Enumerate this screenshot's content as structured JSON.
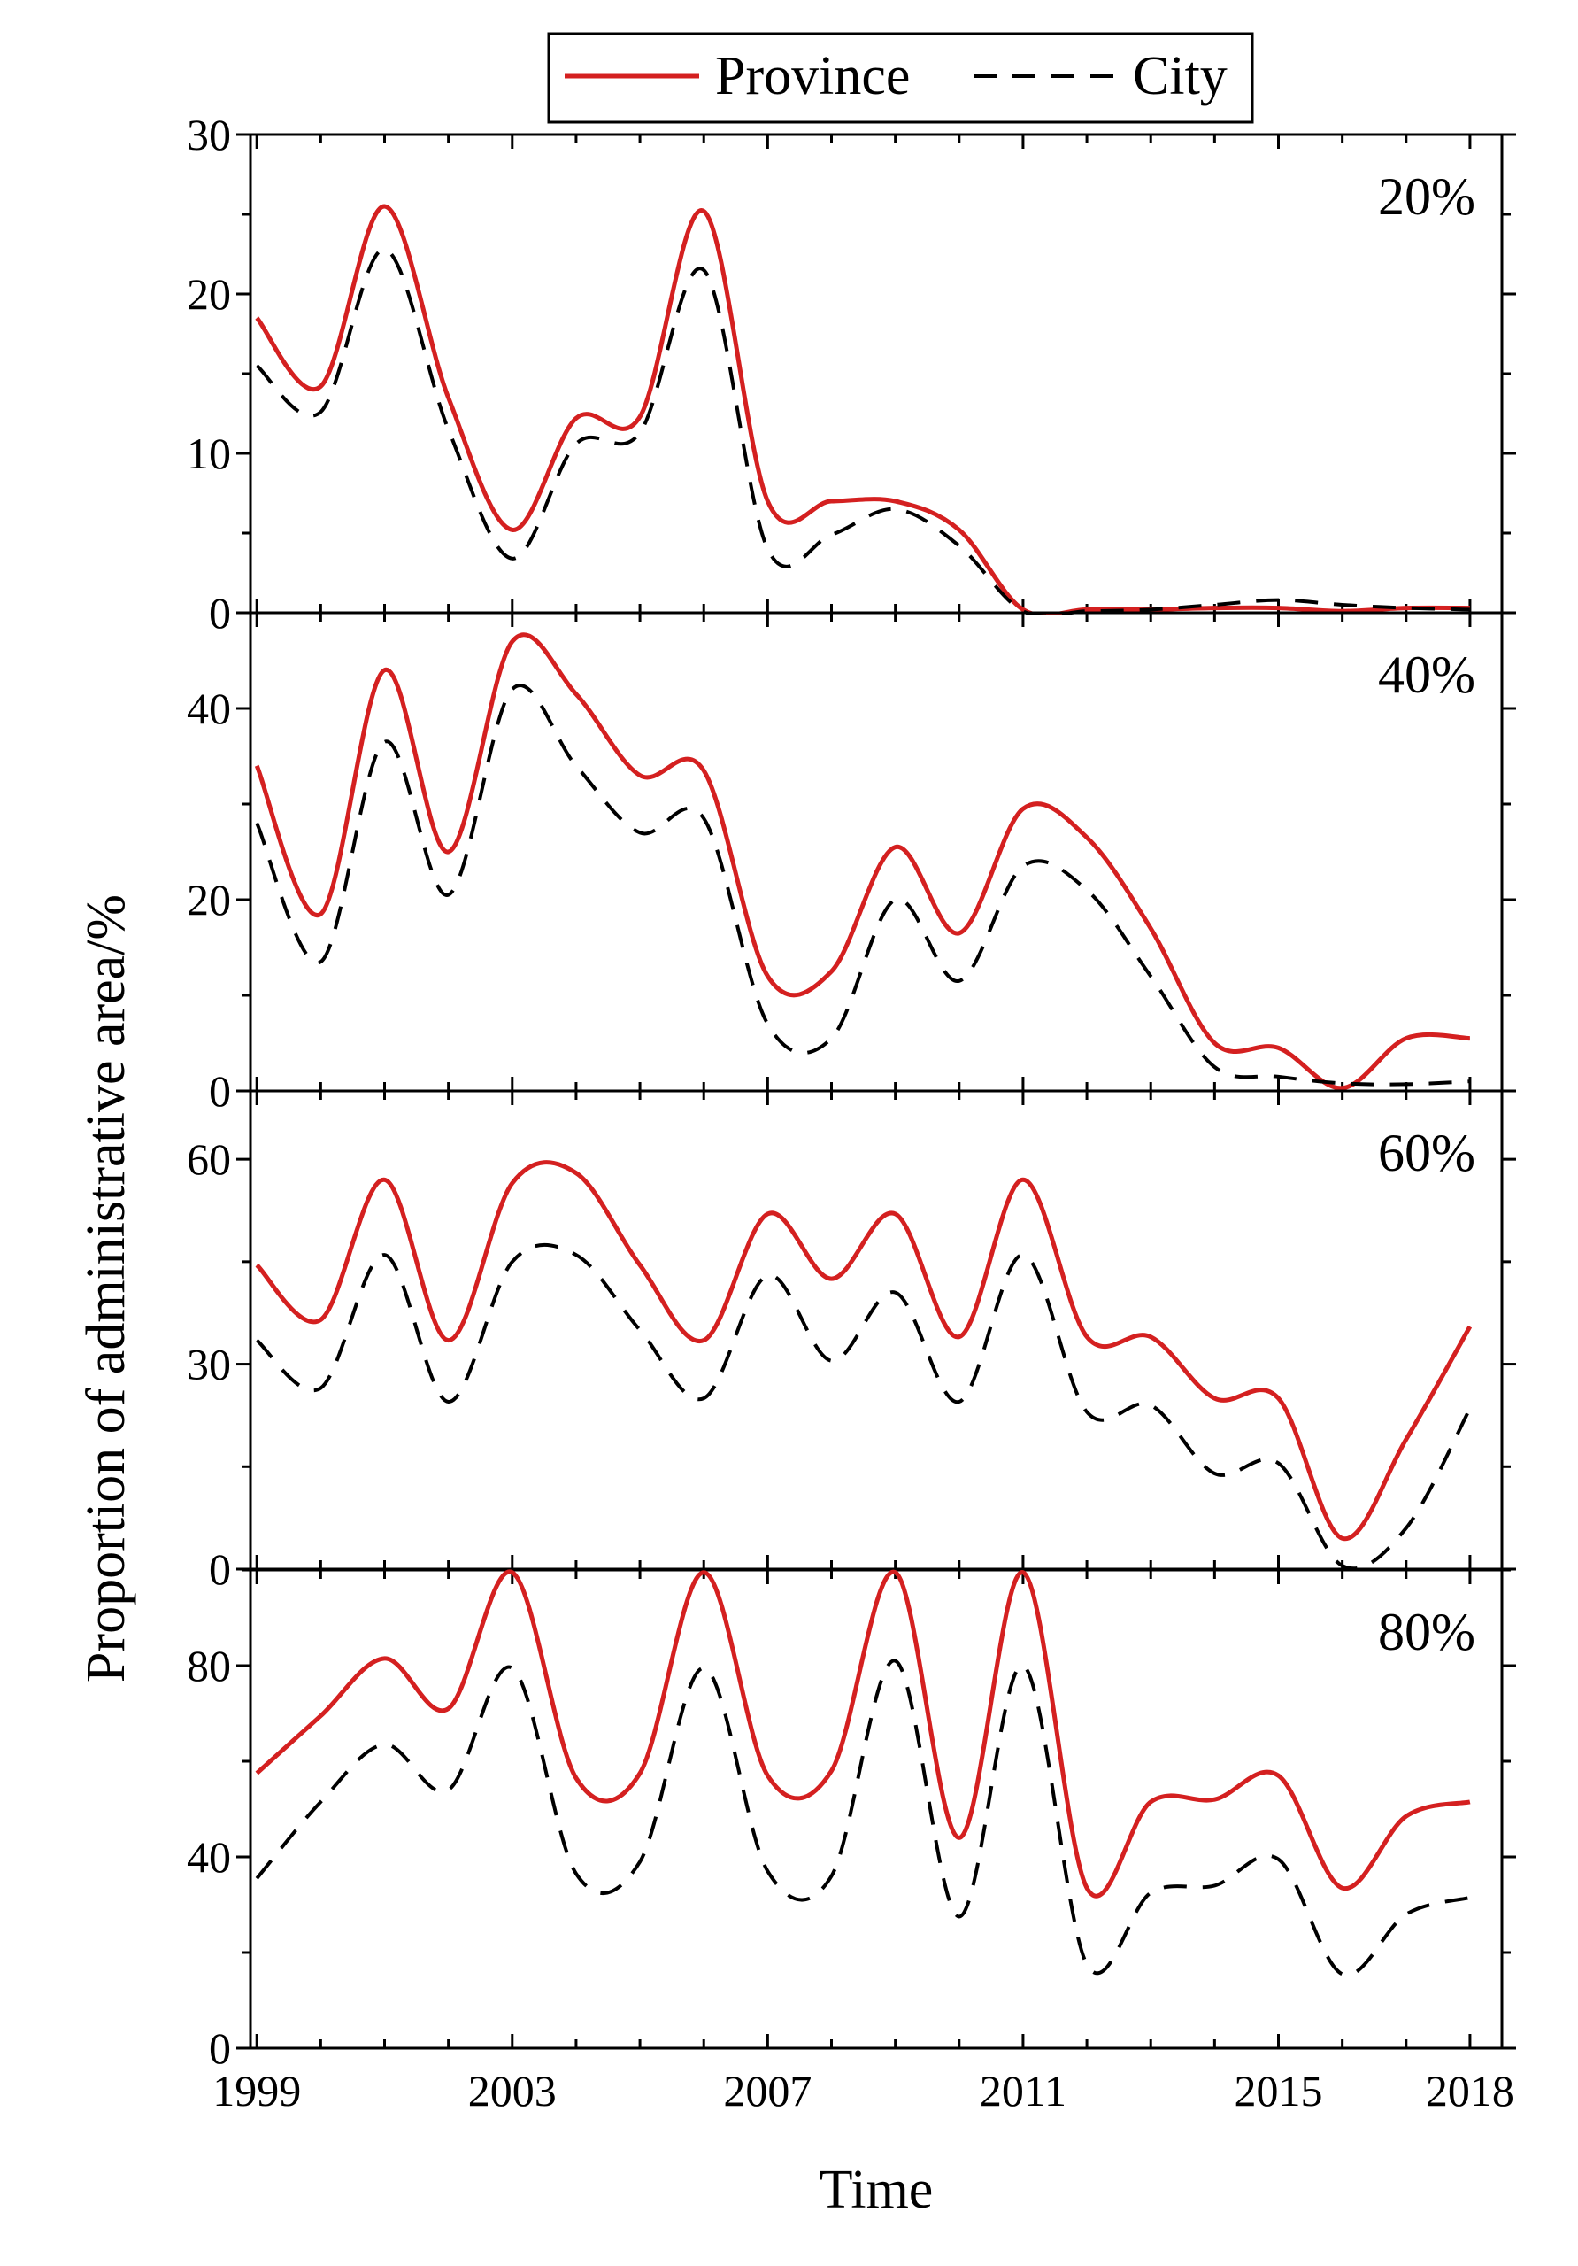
{
  "colors": {
    "province": "#d42020",
    "city": "#000000"
  },
  "chart_data": {
    "type": "line",
    "xlabel": "Time",
    "ylabel": "Proportion of administrative area/%",
    "x_tick_labels": [
      "1999",
      "2003",
      "2007",
      "2011",
      "2015",
      "2018"
    ],
    "x_tick_values": [
      1999,
      2003,
      2007,
      2011,
      2015,
      2018
    ],
    "x_range": [
      1998.9,
      2018.5
    ],
    "legend": {
      "position": "top-center",
      "entries": [
        "Province",
        "City"
      ]
    },
    "x": [
      1999,
      2000,
      2001,
      2002,
      2003,
      2004,
      2005,
      2006,
      2007,
      2008,
      2009,
      2010,
      2011,
      2012,
      2013,
      2014,
      2015,
      2016,
      2017,
      2018
    ],
    "panels": [
      {
        "label": "20%",
        "ylim": [
          0,
          30
        ],
        "y_tick_values": [
          0,
          10,
          20,
          30
        ],
        "y_tick_labels": [
          "0",
          "10",
          "20",
          "30"
        ],
        "series": [
          {
            "name": "Province",
            "style": "solid",
            "values": [
              18.5,
              14.2,
              25.5,
              13.5,
              5.2,
              12.2,
              12.3,
              25.2,
              7.0,
              7.0,
              7.0,
              5.2,
              0.2,
              0.2,
              0.2,
              0.3,
              0.3,
              0.1,
              0.3,
              0.3
            ]
          },
          {
            "name": "City",
            "style": "dashed",
            "values": [
              15.5,
              12.6,
              22.8,
              11.5,
              3.4,
              10.6,
              11.3,
              21.5,
              4.0,
              4.9,
              6.5,
              4.2,
              0.1,
              0.1,
              0.2,
              0.5,
              0.8,
              0.5,
              0.3,
              0.2
            ]
          }
        ]
      },
      {
        "label": "40%",
        "ylim": [
          0,
          50
        ],
        "y_tick_values": [
          0,
          20,
          40
        ],
        "y_tick_labels": [
          "0",
          "20",
          "40"
        ],
        "series": [
          {
            "name": "Province",
            "style": "solid",
            "values": [
              34.0,
              18.5,
              44.0,
              25.0,
              47.0,
              41.5,
              33.0,
              33.5,
              12.0,
              12.5,
              25.5,
              16.5,
              29.5,
              26.5,
              17.0,
              5.0,
              4.5,
              0.3,
              5.5,
              5.5
            ]
          },
          {
            "name": "City",
            "style": "dashed",
            "values": [
              28.0,
              13.5,
              36.5,
              20.5,
              42.0,
              34.0,
              27.0,
              28.5,
              7.0,
              5.5,
              20.0,
              11.5,
              23.5,
              21.0,
              12.0,
              2.5,
              1.5,
              0.8,
              0.7,
              1.0
            ]
          }
        ]
      },
      {
        "label": "60%",
        "ylim": [
          0,
          70
        ],
        "y_tick_values": [
          0,
          30,
          60
        ],
        "y_tick_labels": [
          "0",
          "30",
          "60"
        ],
        "series": [
          {
            "name": "Province",
            "style": "solid",
            "values": [
              44.5,
              36.5,
              57.0,
              33.5,
              56.5,
              58.0,
              44.5,
              33.5,
              52.0,
              42.5,
              52.0,
              34.0,
              57.0,
              34.0,
              34.0,
              25.0,
              25.0,
              4.5,
              19.0,
              35.5
            ]
          },
          {
            "name": "City",
            "style": "dashed",
            "values": [
              33.5,
              26.5,
              46.0,
              24.5,
              45.0,
              46.0,
              35.0,
              25.0,
              43.0,
              30.5,
              40.5,
              24.5,
              46.0,
              23.0,
              24.0,
              14.0,
              15.5,
              0.5,
              6.0,
              23.5
            ]
          }
        ]
      },
      {
        "label": "80%",
        "ylim": [
          0,
          100
        ],
        "y_tick_values": [
          0,
          40,
          80
        ],
        "y_tick_labels": [
          "0",
          "40",
          "80"
        ],
        "series": [
          {
            "name": "Province",
            "style": "solid",
            "values": [
              57.5,
              69.5,
              81.5,
              71.0,
              99.5,
              56.5,
              57.5,
              99.5,
              57.0,
              58.0,
              99.5,
              44.0,
              99.5,
              33.5,
              51.5,
              52.0,
              57.0,
              33.5,
              48.5,
              51.5
            ]
          },
          {
            "name": "City",
            "style": "dashed",
            "values": [
              35.5,
              51.5,
              63.5,
              54.0,
              79.5,
              36.5,
              39.0,
              79.5,
              37.0,
              36.0,
              81.0,
              27.5,
              80.0,
              17.5,
              32.5,
              34.0,
              39.5,
              15.5,
              28.0,
              31.5
            ]
          }
        ]
      }
    ]
  }
}
